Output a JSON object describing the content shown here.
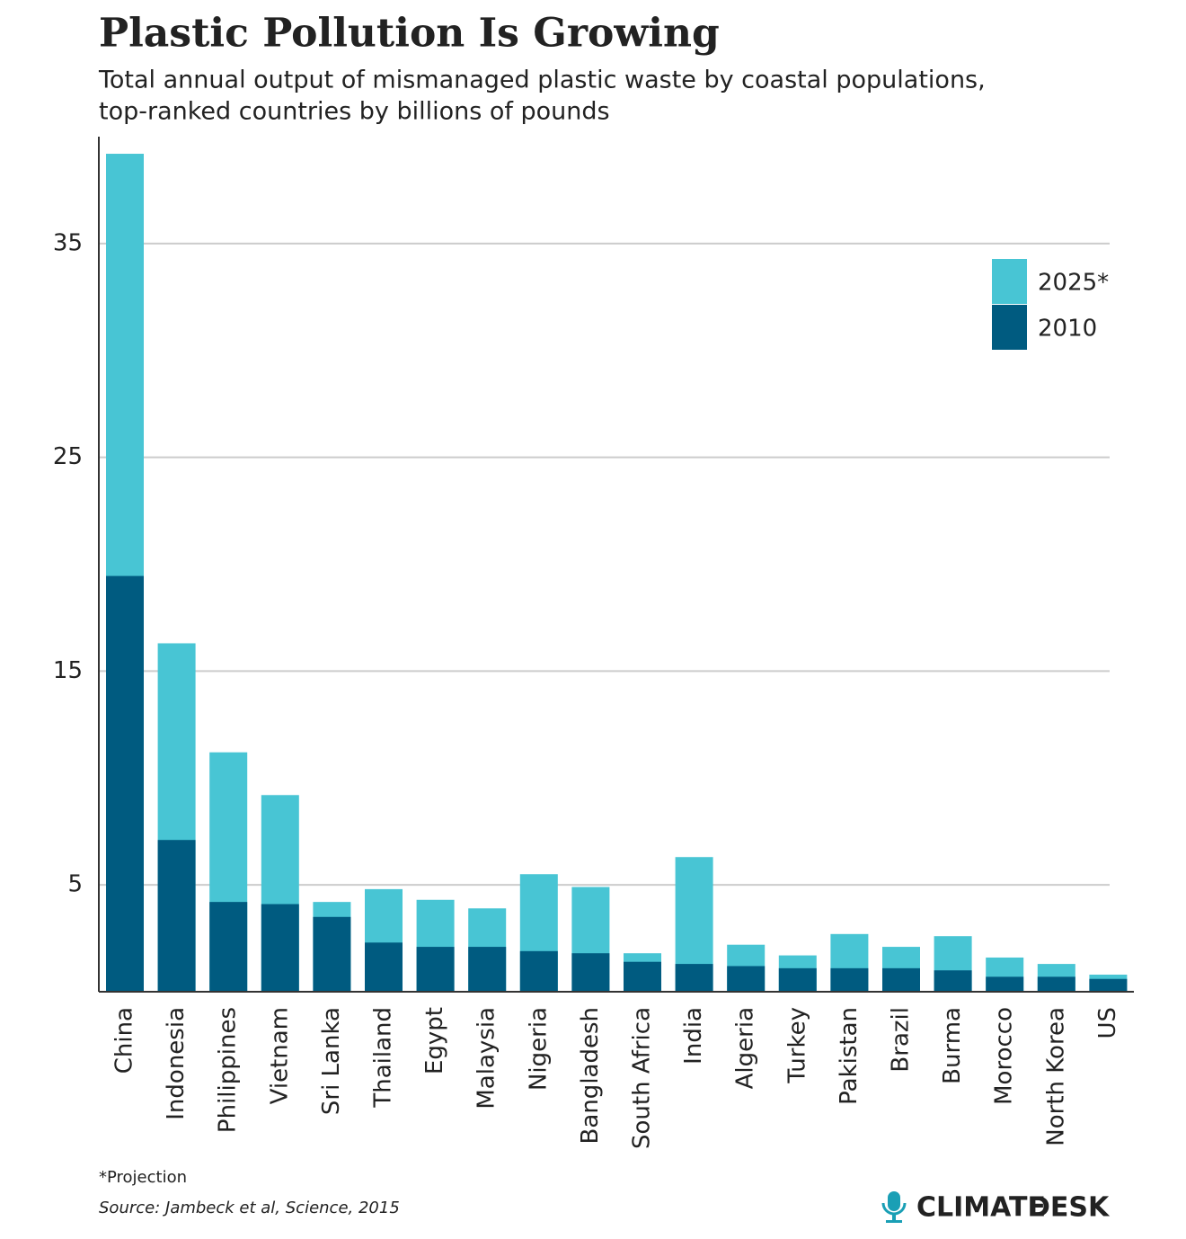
{
  "chart_data": {
    "type": "bar",
    "title": "Plastic Pollution Is Growing",
    "subtitle": [
      "Total annual output of mismanaged plastic waste by coastal populations,",
      "top-ranked countries by billions of pounds"
    ],
    "categories": [
      "China",
      "Indonesia",
      "Philippines",
      "Vietnam",
      "Sri Lanka",
      "Thailand",
      "Egypt",
      "Malaysia",
      "Nigeria",
      "Bangladesh",
      "South Africa",
      "India",
      "Algeria",
      "Turkey",
      "Pakistan",
      "Brazil",
      "Burma",
      "Morocco",
      "North Korea",
      "US"
    ],
    "series": [
      {
        "name": "2025*",
        "color": "#48c5d4",
        "values": [
          39.2,
          16.3,
          11.2,
          9.2,
          4.2,
          4.8,
          4.3,
          3.9,
          5.5,
          4.9,
          1.8,
          6.3,
          2.2,
          1.7,
          2.7,
          2.1,
          2.6,
          1.6,
          1.3,
          0.8
        ]
      },
      {
        "name": "2010",
        "color": "#005b80",
        "values": [
          19.45,
          7.1,
          4.2,
          4.1,
          3.5,
          2.3,
          2.1,
          2.1,
          1.9,
          1.8,
          1.4,
          1.3,
          1.2,
          1.1,
          1.1,
          1.1,
          1.0,
          0.7,
          0.7,
          0.6
        ]
      }
    ],
    "ylim": [
      0,
      40
    ],
    "yticks": [
      5,
      15,
      25,
      35
    ],
    "grid": true,
    "legend": "upper right",
    "footnote": "*Projection",
    "source": "Source: Jambeck et al, Science, 2015",
    "logo": [
      "CLIMATE",
      "DESK"
    ]
  }
}
